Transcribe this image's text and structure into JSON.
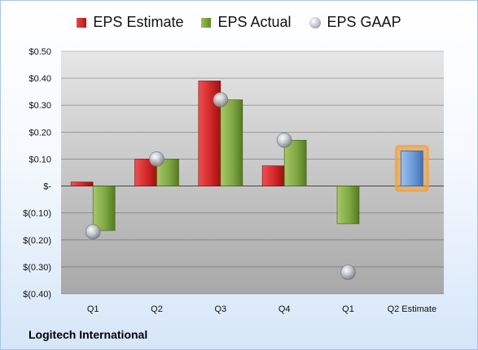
{
  "legend": {
    "estimate": "EPS Estimate",
    "actual": "EPS Actual",
    "gaap": "EPS GAAP"
  },
  "company": "Logitech International",
  "colors": {
    "estimate": "#c8202a",
    "actual": "#78a040",
    "gaap": "#a0a4ac",
    "forecast": "#6a9ad8",
    "forecast_glow": "#f5a23c"
  },
  "chart_data": {
    "type": "bar",
    "categories": [
      "Q1",
      "Q2",
      "Q3",
      "Q4",
      "Q1",
      "Q2 Estimate"
    ],
    "series": [
      {
        "name": "EPS Estimate",
        "values": [
          0.015,
          0.1,
          0.39,
          0.075,
          null,
          0.13
        ]
      },
      {
        "name": "EPS Actual",
        "values": [
          -0.165,
          0.1,
          0.32,
          0.17,
          -0.14,
          null
        ]
      },
      {
        "name": "EPS GAAP",
        "values": [
          -0.17,
          0.1,
          0.32,
          0.17,
          -0.32,
          null
        ]
      }
    ],
    "ylim": [
      -0.4,
      0.5
    ],
    "yticks": [
      0.5,
      0.4,
      0.3,
      0.2,
      0.1,
      0,
      -0.1,
      -0.2,
      -0.3,
      -0.4
    ],
    "ytick_labels": [
      "$0.50",
      "$0.40",
      "$0.30",
      "$0.20",
      "$0.10",
      "$-",
      "$(0.10)",
      "$(0.20)",
      "$(0.30)",
      "$(0.40)"
    ],
    "grid": true,
    "legend_position": "top",
    "highlight_category": "Q2 Estimate"
  }
}
